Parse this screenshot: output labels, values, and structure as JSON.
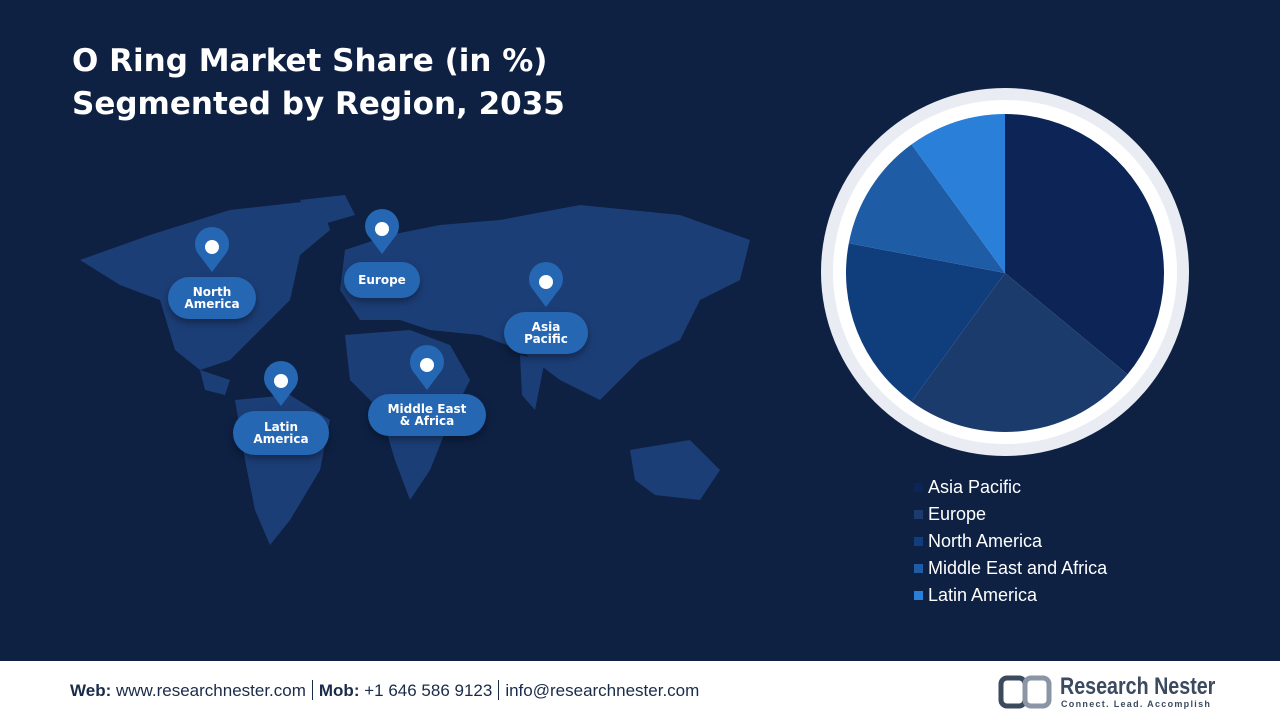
{
  "chart_data": {
    "type": "pie",
    "title": "O Ring Market Share (in %) Segmented by Region, 2035",
    "categories": [
      "Asia Pacific",
      "Europe",
      "North America",
      "Middle East and Africa",
      "Latin America"
    ],
    "values": [
      36,
      24,
      18,
      12,
      10
    ],
    "colors": [
      "#0c2456",
      "#1a3b6c",
      "#103d7c",
      "#1e5ca6",
      "#2a7fd8"
    ]
  },
  "map_labels": [
    "North America",
    "Europe",
    "Asia Pacific",
    "Latin America",
    "Middle East & Africa"
  ],
  "footer": {
    "web_label": "Web:",
    "web": "www.researchnester.com",
    "mob_label": "Mob:",
    "mob": "+1 646 586 9123",
    "email": "info@researchnester.com",
    "brand": "Research Nester",
    "tagline": "Connect. Lead. Accomplish"
  }
}
